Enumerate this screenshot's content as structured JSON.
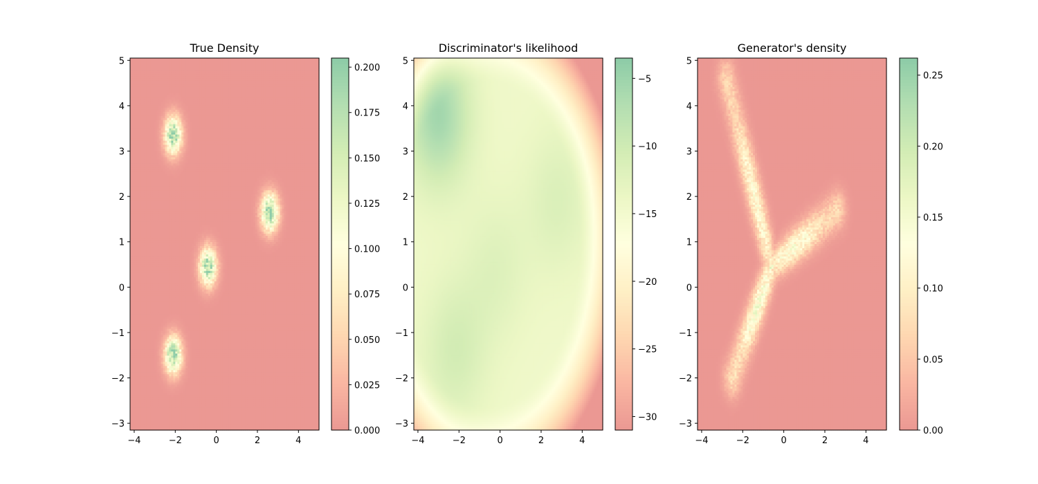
{
  "chart_data": [
    {
      "type": "heatmap",
      "title": "True Density",
      "xlim": [
        -4.2,
        5.0
      ],
      "ylim": [
        -3.15,
        5.05
      ],
      "xticks": [
        -4,
        -2,
        0,
        2,
        4
      ],
      "yticks": [
        -3,
        -2,
        -1,
        0,
        1,
        2,
        3,
        4,
        5
      ],
      "colorbar": {
        "min": 0.0,
        "max": 0.205,
        "ticks": [
          0.0,
          0.025,
          0.05,
          0.075,
          0.1,
          0.125,
          0.15,
          0.175,
          0.2
        ],
        "tick_labels": [
          "0.000",
          "0.025",
          "0.050",
          "0.075",
          "0.100",
          "0.125",
          "0.150",
          "0.175",
          "0.200"
        ]
      },
      "components": [
        {
          "x": -2.1,
          "y": 3.35,
          "peak": 0.19
        },
        {
          "x": -0.4,
          "y": 0.45,
          "peak": 0.19
        },
        {
          "x": 2.6,
          "y": 1.65,
          "peak": 0.2
        },
        {
          "x": -2.1,
          "y": -1.5,
          "peak": 0.19
        }
      ],
      "noise": true
    },
    {
      "type": "heatmap",
      "title": "Discriminator's likelihood",
      "xlim": [
        -4.2,
        5.0
      ],
      "ylim": [
        -3.15,
        5.05
      ],
      "xticks": [
        -4,
        -2,
        0,
        2,
        4
      ],
      "yticks": [
        -3,
        -2,
        -1,
        0,
        1,
        2,
        3,
        4,
        5
      ],
      "colorbar": {
        "min": -31.0,
        "max": -3.5,
        "ticks": [
          -30,
          -25,
          -20,
          -15,
          -10,
          -5
        ],
        "tick_labels": [
          "−30",
          "−25",
          "−20",
          "−15",
          "−10",
          "−5"
        ]
      },
      "description_components": [
        {
          "x": -3.0,
          "y": 3.8,
          "value": -6
        },
        {
          "x": -2.2,
          "y": -1.4,
          "value": -11
        },
        {
          "x": 2.8,
          "y": 1.9,
          "value": -12
        },
        {
          "x": -0.2,
          "y": 0.4,
          "value": -12.5
        }
      ],
      "noise": false
    },
    {
      "type": "heatmap",
      "title": "Generator's density",
      "xlim": [
        -4.2,
        5.0
      ],
      "ylim": [
        -3.15,
        5.05
      ],
      "xticks": [
        -4,
        -2,
        0,
        2,
        4
      ],
      "yticks": [
        -3,
        -2,
        -1,
        0,
        1,
        2,
        3,
        4,
        5
      ],
      "colorbar": {
        "min": 0.0,
        "max": 0.262,
        "ticks": [
          0.0,
          0.05,
          0.1,
          0.15,
          0.2,
          0.25
        ],
        "tick_labels": [
          "0.00",
          "0.05",
          "0.10",
          "0.15",
          "0.20",
          "0.25"
        ]
      },
      "arms": [
        {
          "from": [
            -0.6,
            0.45
          ],
          "to": [
            -2.8,
            4.6
          ],
          "peak": 0.12
        },
        {
          "from": [
            -0.6,
            0.45
          ],
          "to": [
            2.6,
            1.7
          ],
          "peak": 0.13
        },
        {
          "from": [
            -0.6,
            0.45
          ],
          "to": [
            -2.5,
            -2.0
          ],
          "peak": 0.14
        }
      ],
      "center": {
        "x": -0.6,
        "y": 0.45,
        "peak": 0.26
      },
      "noise": true
    }
  ],
  "colormap": {
    "stops": [
      "#d73027",
      "#f46d43",
      "#fdae61",
      "#fee08b",
      "#ffffbf",
      "#d9ef8b",
      "#a6d96a",
      "#66bd63",
      "#1a9850"
    ],
    "alpha": 0.5,
    "background": "#ffffff"
  }
}
